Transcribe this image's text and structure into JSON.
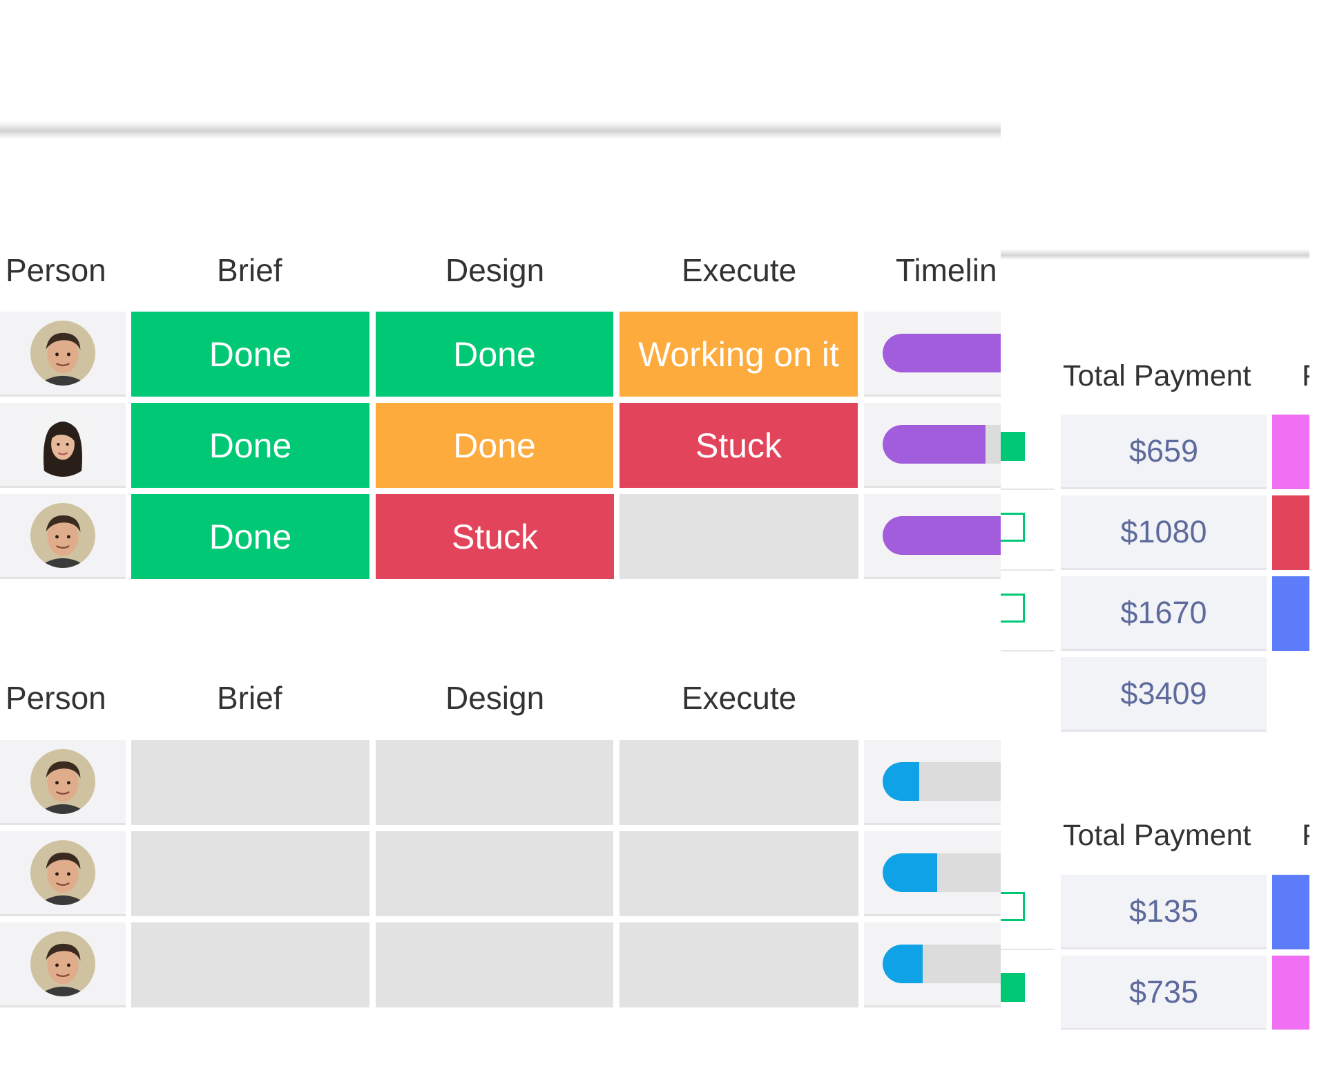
{
  "colors": {
    "done": "#00c875",
    "working": "#fdab3d",
    "stuck": "#e2445c",
    "empty": "#e2e2e2",
    "timeline_purple": "#a25ddc",
    "timeline_blue": "#0fa2e6",
    "payment_text": "#5e6a9c",
    "tag_pink": "#f06ff2",
    "tag_red": "#e2445c",
    "tag_blue": "#5c7cfa"
  },
  "board": {
    "group1": {
      "headers": {
        "person": "Person",
        "brief": "Brief",
        "design": "Design",
        "execute": "Execute",
        "timeline": "Timelin"
      },
      "rows": [
        {
          "avatar": "avatar-man-icon",
          "brief": "Done",
          "design": "Done",
          "execute": "Working on it",
          "timeline_progress": 1.0,
          "timeline_color": "#a25ddc"
        },
        {
          "avatar": "avatar-woman-icon",
          "brief": "Done",
          "design": "Done",
          "execute": "Stuck",
          "timeline_progress": 0.87,
          "timeline_color": "#a25ddc"
        },
        {
          "avatar": "avatar-man-icon",
          "brief": "Done",
          "design": "Stuck",
          "execute": "",
          "timeline_progress": 1.0,
          "timeline_color": "#a25ddc"
        }
      ]
    },
    "group2": {
      "headers": {
        "person": "Person",
        "brief": "Brief",
        "design": "Design",
        "execute": "Execute"
      },
      "rows": [
        {
          "avatar": "avatar-man-icon",
          "brief": "",
          "design": "",
          "execute": "",
          "timeline_progress": 0.31,
          "timeline_color": "#0fa2e6"
        },
        {
          "avatar": "avatar-man-icon",
          "brief": "",
          "design": "",
          "execute": "",
          "timeline_progress": 0.46,
          "timeline_color": "#0fa2e6"
        },
        {
          "avatar": "avatar-man-icon",
          "brief": "",
          "design": "",
          "execute": "",
          "timeline_progress": 0.34,
          "timeline_color": "#0fa2e6"
        }
      ]
    }
  },
  "payments": {
    "group1": {
      "header": "Total Payment",
      "header_next": "P",
      "rows": [
        {
          "checked": true,
          "amount": "$659",
          "tag_color": "#f06ff2"
        },
        {
          "checked": false,
          "amount": "$1080",
          "tag_color": "#e2445c"
        },
        {
          "checked": false,
          "amount": "$1670",
          "tag_color": "#5c7cfa"
        }
      ],
      "total": "$3409"
    },
    "group2": {
      "header": "Total Payment",
      "header_next": "P",
      "rows": [
        {
          "checked": false,
          "amount": "$135",
          "tag_color": "#5c7cfa"
        },
        {
          "checked": true,
          "amount": "$735",
          "tag_color": "#f06ff2"
        }
      ]
    }
  }
}
